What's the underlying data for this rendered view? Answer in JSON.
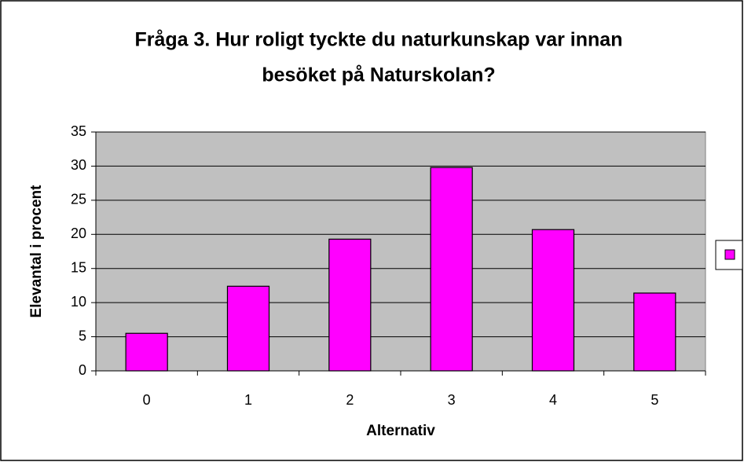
{
  "chart_data": {
    "type": "bar",
    "title": [
      "Fråga 3. Hur roligt tyckte du naturkunskap var innan",
      "besöket på Naturskolan?"
    ],
    "x_label": "Alternativ",
    "y_label": "Elevantal i procent",
    "categories": [
      "0",
      "1",
      "2",
      "3",
      "4",
      "5"
    ],
    "values": [
      5.5,
      12.4,
      19.3,
      29.8,
      20.7,
      11.4
    ],
    "color": "#ff00ff",
    "ylim": [
      0,
      35
    ],
    "yticks": [
      0,
      5,
      10,
      15,
      20,
      25,
      30,
      35
    ],
    "grid": true,
    "legend": "right"
  }
}
